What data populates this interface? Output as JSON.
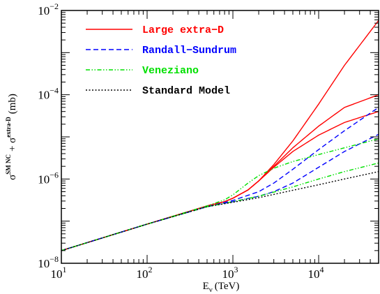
{
  "chart_data": {
    "type": "line",
    "xscale": "log",
    "yscale": "log",
    "xlim": [
      10,
      50000
    ],
    "ylim": [
      1e-08,
      0.01
    ],
    "grid": false,
    "legend_position": "top-left",
    "xlabel": "E",
    "xlabel_sub": "ν",
    "xlabel_unit": "(TeV)",
    "ylabel": "σ",
    "ylabel_sup1": "SM NC",
    "ylabel_plus": "+ σ",
    "ylabel_sup2": "extra-D",
    "ylabel_unit": "(mb)",
    "x_ticks": [
      {
        "value": 10,
        "base": "10",
        "exp": "1"
      },
      {
        "value": 100,
        "base": "10",
        "exp": "2"
      },
      {
        "value": 1000,
        "base": "10",
        "exp": "3"
      },
      {
        "value": 10000,
        "base": "10",
        "exp": "4"
      }
    ],
    "y_ticks": [
      {
        "value": 1e-08,
        "base": "10",
        "exp": "−8"
      },
      {
        "value": 1e-06,
        "base": "10",
        "exp": "−6"
      },
      {
        "value": 0.0001,
        "base": "10",
        "exp": "−4"
      },
      {
        "value": 0.01,
        "base": "10",
        "exp": "−2"
      }
    ],
    "legend": [
      {
        "label": "Large extra−D",
        "color": "#ff0000",
        "dash": "solid"
      },
      {
        "label": "Randall−Sundrum",
        "color": "#0000ff",
        "dash": "dashed"
      },
      {
        "label": "Veneziano",
        "color": "#00e000",
        "dash": "dashdotdot"
      },
      {
        "label": "Standard Model",
        "color": "#000000",
        "dash": "dotted"
      }
    ],
    "series": [
      {
        "group": "Large extra−D",
        "color": "#ff0000",
        "dash": "solid",
        "x": [
          10,
          100,
          500,
          800,
          1000,
          1500,
          2000,
          3000,
          5000,
          10000,
          20000,
          50000
        ],
        "y": [
          2e-08,
          8.5e-08,
          2.3e-07,
          2.9e-07,
          3.5e-07,
          5.5e-07,
          9e-07,
          2.2e-06,
          8e-06,
          6e-05,
          0.0005,
          0.0058
        ]
      },
      {
        "group": "Large extra−D",
        "color": "#ff0000",
        "dash": "solid",
        "x": [
          10,
          100,
          500,
          800,
          1000,
          1500,
          2000,
          3000,
          5000,
          10000,
          20000,
          50000
        ],
        "y": [
          2e-08,
          8.5e-08,
          2.3e-07,
          2.9e-07,
          3.5e-07,
          5.5e-07,
          9e-07,
          2e-06,
          5.5e-06,
          1.8e-05,
          5e-05,
          0.0001
        ]
      },
      {
        "group": "Large extra−D",
        "color": "#ff0000",
        "dash": "solid",
        "x": [
          10,
          100,
          500,
          800,
          1000,
          1500,
          2000,
          3000,
          5000,
          10000,
          20000,
          50000
        ],
        "y": [
          2e-08,
          8.5e-08,
          2.3e-07,
          2.9e-07,
          3.5e-07,
          5.5e-07,
          9e-07,
          1.9e-06,
          4.5e-06,
          1.1e-05,
          2.2e-05,
          4e-05
        ]
      },
      {
        "group": "Randall−Sundrum",
        "color": "#0000ff",
        "dash": "dashed",
        "x": [
          10,
          100,
          500,
          1000,
          2000,
          3000,
          5000,
          10000,
          20000,
          50000
        ],
        "y": [
          2e-08,
          8.5e-08,
          2.2e-07,
          3.1e-07,
          5e-07,
          8e-07,
          1.7e-06,
          5e-06,
          1.4e-05,
          5e-05
        ]
      },
      {
        "group": "Randall−Sundrum",
        "color": "#0000ff",
        "dash": "dashed",
        "x": [
          10,
          100,
          500,
          1000,
          2000,
          3000,
          5000,
          10000,
          20000,
          50000
        ],
        "y": [
          2e-08,
          8.5e-08,
          2.2e-07,
          2.9e-07,
          3.9e-07,
          5e-07,
          8e-07,
          1.9e-06,
          4.5e-06,
          1.15e-05
        ]
      },
      {
        "group": "Veneziano",
        "color": "#00e000",
        "dash": "dashdotdot",
        "x": [
          10,
          100,
          500,
          800,
          1000,
          1500,
          2000,
          3000,
          5000,
          10000,
          20000,
          50000
        ],
        "y": [
          2e-08,
          8.5e-08,
          2.3e-07,
          3.2e-07,
          4.2e-07,
          8e-07,
          1.2e-06,
          1.8e-06,
          2.6e-06,
          3.8e-06,
          5.5e-06,
          9e-06
        ]
      },
      {
        "group": "Veneziano",
        "color": "#00e000",
        "dash": "dashdotdot",
        "x": [
          10,
          100,
          500,
          1000,
          2000,
          5000,
          10000,
          20000,
          50000
        ],
        "y": [
          2e-08,
          8.5e-08,
          2.2e-07,
          2.9e-07,
          3.9e-07,
          6.5e-07,
          1e-06,
          1.5e-06,
          2.4e-06
        ]
      },
      {
        "group": "Standard Model",
        "color": "#000000",
        "dash": "dotted",
        "x": [
          10,
          100,
          500,
          1000,
          2000,
          5000,
          10000,
          20000,
          50000
        ],
        "y": [
          2e-08,
          8.5e-08,
          2.2e-07,
          2.8e-07,
          3.6e-07,
          5.4e-07,
          7.3e-07,
          1e-06,
          1.5e-06
        ]
      }
    ]
  }
}
